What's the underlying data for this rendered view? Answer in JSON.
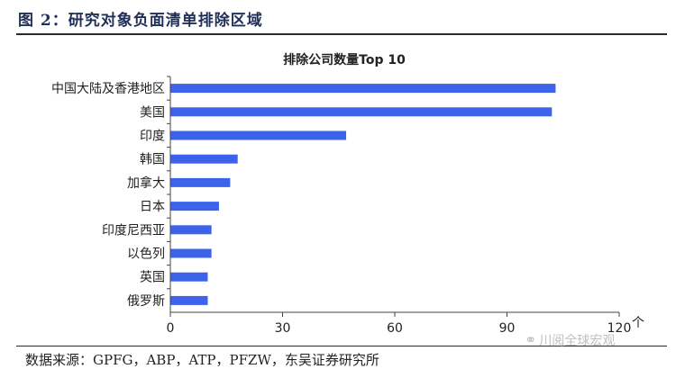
{
  "figure": {
    "title": "图 2：研究对象负面清单排除区域",
    "source": "数据来源：GPFG，ABP，ATP，PFZW，东吴证券研究所",
    "watermark": "川阅全球宏观"
  },
  "colors": {
    "bar": "#3d63ea",
    "axis": "#444444",
    "text": "#222222"
  },
  "chart_data": {
    "type": "bar",
    "orientation": "horizontal",
    "title": "排除公司数量Top 10",
    "categories": [
      "中国大陆及香港地区",
      "美国",
      "印度",
      "韩国",
      "加拿大",
      "日本",
      "印度尼西亚",
      "以色列",
      "英国",
      "俄罗斯"
    ],
    "values": [
      103,
      102,
      47,
      18,
      16,
      13,
      11,
      11,
      10,
      10
    ],
    "xlim": [
      0,
      120
    ],
    "xticks": [
      0,
      30,
      60,
      90,
      120
    ],
    "xunit": "个",
    "grid": false,
    "legend": "none"
  }
}
